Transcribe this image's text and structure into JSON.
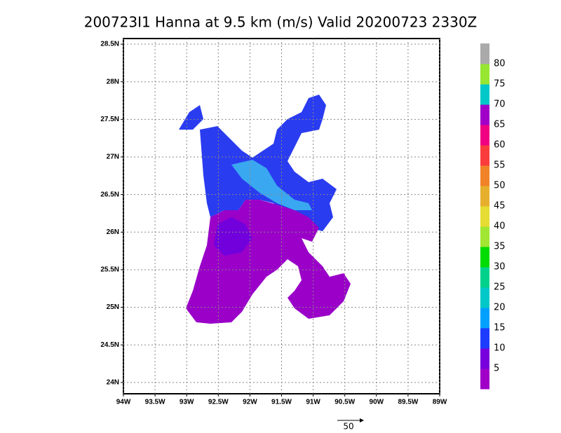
{
  "chart_data": {
    "type": "map",
    "title": "200723I1 Hanna at 9.5 km (m/s) Valid 20200723 2330Z",
    "xlim": [
      -94,
      -89
    ],
    "ylim": [
      23.85,
      28.575
    ],
    "xticks": [
      {
        "value": -94,
        "label": "94W"
      },
      {
        "value": -93.5,
        "label": "93.5W"
      },
      {
        "value": -93,
        "label": "93W"
      },
      {
        "value": -92.5,
        "label": "92.5W"
      },
      {
        "value": -92,
        "label": "92W"
      },
      {
        "value": -91.5,
        "label": "91.5W"
      },
      {
        "value": -91,
        "label": "91W"
      },
      {
        "value": -90.5,
        "label": "90.5W"
      },
      {
        "value": -90,
        "label": "90W"
      },
      {
        "value": -89.5,
        "label": "89.5W"
      },
      {
        "value": -89,
        "label": "89W"
      }
    ],
    "yticks": [
      {
        "value": 24,
        "label": "24N"
      },
      {
        "value": 24.5,
        "label": "24.5N"
      },
      {
        "value": 25,
        "label": "25N"
      },
      {
        "value": 25.5,
        "label": "25.5N"
      },
      {
        "value": 26,
        "label": "26N"
      },
      {
        "value": 26.5,
        "label": "26.5N"
      },
      {
        "value": 27,
        "label": "27N"
      },
      {
        "value": 27.5,
        "label": "27.5N"
      },
      {
        "value": 28,
        "label": "28N"
      },
      {
        "value": 28.5,
        "label": "28.5N"
      }
    ],
    "grid": true,
    "colorbar": {
      "levels": [
        5,
        10,
        15,
        20,
        25,
        30,
        35,
        40,
        45,
        50,
        55,
        60,
        65,
        70,
        75,
        80
      ],
      "colors": [
        "#a000c8",
        "#7800dc",
        "#1e3cff",
        "#00a0ff",
        "#00c8c8",
        "#00d28c",
        "#00dc00",
        "#a0e632",
        "#e6dc32",
        "#e6af2d",
        "#f08228",
        "#fa3c3c",
        "#f00082",
        "#a000c8",
        "#00c8c8",
        "#96e632",
        "#aaaaaa"
      ]
    },
    "vector_scale": 50
  }
}
